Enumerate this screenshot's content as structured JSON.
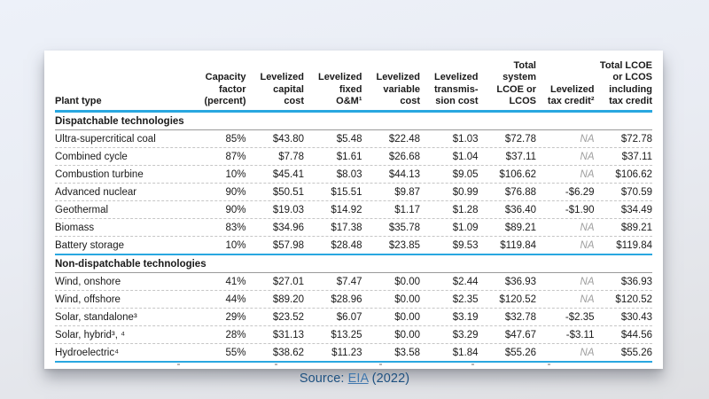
{
  "chart_data": {
    "type": "table",
    "columns": [
      "Plant type",
      "Capacity factor (percent)",
      "Levelized capital cost",
      "Levelized fixed O&M¹",
      "Levelized variable cost",
      "Levelized transmission cost",
      "Total system LCOE or LCOS",
      "Levelized tax credit²",
      "Total LCOE or LCOS including tax credit"
    ],
    "sections": [
      {
        "title": "Dispatchable technologies",
        "rows": [
          {
            "plant_type": "Ultra-supercritical coal",
            "values": [
              "85%",
              "$43.80",
              "$5.48",
              "$22.48",
              "$1.03",
              "$72.78",
              "NA",
              "$72.78"
            ]
          },
          {
            "plant_type": "Combined cycle",
            "values": [
              "87%",
              "$7.78",
              "$1.61",
              "$26.68",
              "$1.04",
              "$37.11",
              "NA",
              "$37.11"
            ]
          },
          {
            "plant_type": "Combustion turbine",
            "values": [
              "10%",
              "$45.41",
              "$8.03",
              "$44.13",
              "$9.05",
              "$106.62",
              "NA",
              "$106.62"
            ]
          },
          {
            "plant_type": "Advanced nuclear",
            "values": [
              "90%",
              "$50.51",
              "$15.51",
              "$9.87",
              "$0.99",
              "$76.88",
              "-$6.29",
              "$70.59"
            ]
          },
          {
            "plant_type": "Geothermal",
            "values": [
              "90%",
              "$19.03",
              "$14.92",
              "$1.17",
              "$1.28",
              "$36.40",
              "-$1.90",
              "$34.49"
            ]
          },
          {
            "plant_type": "Biomass",
            "values": [
              "83%",
              "$34.96",
              "$17.38",
              "$35.78",
              "$1.09",
              "$89.21",
              "NA",
              "$89.21"
            ]
          },
          {
            "plant_type": "Battery storage",
            "values": [
              "10%",
              "$57.98",
              "$28.48",
              "$23.85",
              "$9.53",
              "$119.84",
              "NA",
              "$119.84"
            ]
          }
        ]
      },
      {
        "title": "Non-dispatchable technologies",
        "rows": [
          {
            "plant_type": "Wind, onshore",
            "values": [
              "41%",
              "$27.01",
              "$7.47",
              "$0.00",
              "$2.44",
              "$36.93",
              "NA",
              "$36.93"
            ]
          },
          {
            "plant_type": "Wind, offshore",
            "values": [
              "44%",
              "$89.20",
              "$28.96",
              "$0.00",
              "$2.35",
              "$120.52",
              "NA",
              "$120.52"
            ]
          },
          {
            "plant_type": "Solar, standalone³",
            "values": [
              "29%",
              "$23.52",
              "$6.07",
              "$0.00",
              "$3.19",
              "$32.78",
              "-$2.35",
              "$30.43"
            ]
          },
          {
            "plant_type": "Solar, hybrid³, ⁴",
            "values": [
              "28%",
              "$31.13",
              "$13.25",
              "$0.00",
              "$3.29",
              "$47.67",
              "-$3.11",
              "$44.56"
            ]
          },
          {
            "plant_type": "Hydroelectric⁴",
            "values": [
              "55%",
              "$38.62",
              "$11.23",
              "$3.58",
              "$1.84",
              "$55.26",
              "NA",
              "$55.26"
            ]
          }
        ]
      }
    ]
  },
  "table": {
    "columns_display": [
      "Plant type",
      "Capacity\nfactor\n(percent)",
      "Levelized\ncapital\ncost",
      "Levelized\nfixed\nO&M¹",
      "Levelized\nvariable\ncost",
      "Levelized\ntransmis-\nsion cost",
      "Total\nsystem\nLCOE or\nLCOS",
      "Levelized\ntax credit²",
      "Total LCOE\nor LCOS\nincluding\ntax credit"
    ]
  },
  "source": {
    "prefix": "Source: ",
    "link_text": "EIA",
    "suffix": " (2022)"
  },
  "colors": {
    "accent_blue": "#29A7E0",
    "source_text_blue": "#1E5180",
    "link_blue": "#4178AE",
    "na_gray": "#9E9E9E"
  }
}
